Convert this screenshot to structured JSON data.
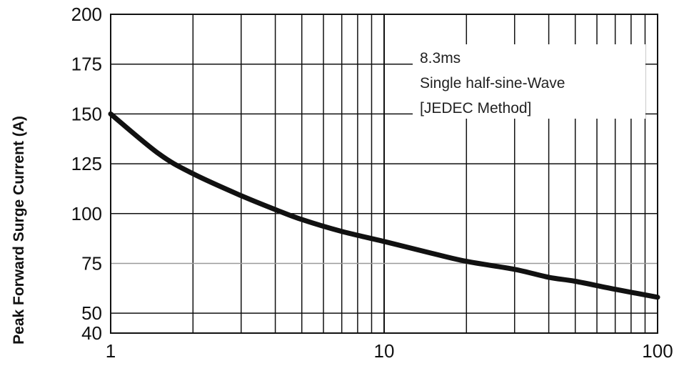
{
  "chart_data": {
    "type": "line",
    "title": "",
    "xlabel": "",
    "ylabel": "Peak Forward Surge Current (A)",
    "x_scale": "log",
    "xlim": [
      1,
      100
    ],
    "ylim": [
      40,
      200
    ],
    "x_ticks": [
      {
        "value": 1,
        "label": "1"
      },
      {
        "value": 10,
        "label": "10"
      },
      {
        "value": 100,
        "label": "100"
      }
    ],
    "y_ticks": [
      {
        "value": 200,
        "label": "200"
      },
      {
        "value": 175,
        "label": "175"
      },
      {
        "value": 150,
        "label": "150"
      },
      {
        "value": 125,
        "label": "125"
      },
      {
        "value": 100,
        "label": "100"
      },
      {
        "value": 75,
        "label": "75"
      },
      {
        "value": 50,
        "label": "50"
      },
      {
        "value": 40,
        "label": "40"
      }
    ],
    "grid": true,
    "annotation": [
      "8.3ms",
      "Single half-sine-Wave",
      "[JEDEC Method]"
    ],
    "series": [
      {
        "x": [
          1,
          1.5,
          2,
          3,
          4,
          5,
          7,
          10,
          15,
          20,
          30,
          40,
          50,
          70,
          100
        ],
        "y": [
          150,
          130,
          120,
          109,
          102,
          97,
          91,
          86,
          80,
          76,
          72,
          68,
          66,
          62,
          58
        ]
      }
    ],
    "colors": {
      "curve": "#111111",
      "grid": "#111111",
      "background": "#ffffff"
    }
  }
}
